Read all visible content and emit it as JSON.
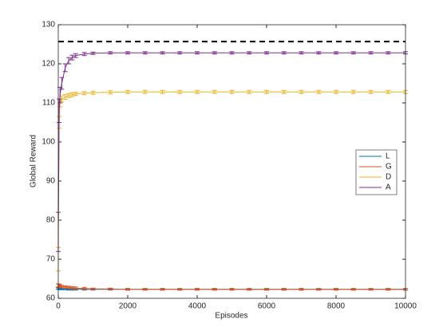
{
  "chart_data": {
    "type": "line",
    "x_label": "Episodes",
    "y_label": "Global Reward",
    "x": [
      0,
      25,
      50,
      100,
      200,
      300,
      400,
      500,
      750,
      1000,
      1500,
      2000,
      2500,
      3000,
      3500,
      4000,
      4500,
      5000,
      5500,
      6000,
      6500,
      7000,
      7500,
      8000,
      8500,
      9000,
      9500,
      10000
    ],
    "series": [
      {
        "name": "L",
        "color": "#0072bd",
        "values": [
          62.5,
          62.5,
          62.4,
          62.4,
          62.4,
          62.3,
          62.3,
          62.3,
          62.3,
          62.3,
          62.3,
          62.3,
          62.3,
          62.3,
          62.3,
          62.3,
          62.3,
          62.3,
          62.3,
          62.3,
          62.3,
          62.3,
          62.3,
          62.3,
          62.3,
          62.3,
          62.3,
          62.3
        ],
        "errors": [
          0.2,
          0.2,
          0.2,
          0.2,
          0.2,
          0.2,
          0.2,
          0.2,
          0.2,
          0.2,
          0.2,
          0.2,
          0.2,
          0.2,
          0.2,
          0.2,
          0.2,
          0.2,
          0.2,
          0.2,
          0.2,
          0.2,
          0.2,
          0.2,
          0.2,
          0.2,
          0.2,
          0.2
        ]
      },
      {
        "name": "G",
        "color": "#d95319",
        "values": [
          63.3,
          63.2,
          63.1,
          63.0,
          62.9,
          62.8,
          62.7,
          62.6,
          62.5,
          62.4,
          62.4,
          62.3,
          62.3,
          62.3,
          62.3,
          62.3,
          62.3,
          62.3,
          62.3,
          62.3,
          62.3,
          62.3,
          62.3,
          62.3,
          62.3,
          62.3,
          62.3,
          62.3
        ],
        "errors": [
          0.4,
          0.4,
          0.3,
          0.3,
          0.3,
          0.3,
          0.3,
          0.3,
          0.3,
          0.2,
          0.2,
          0.2,
          0.2,
          0.2,
          0.2,
          0.2,
          0.2,
          0.2,
          0.2,
          0.2,
          0.2,
          0.2,
          0.2,
          0.2,
          0.2,
          0.2,
          0.2,
          0.2
        ]
      },
      {
        "name": "D",
        "color": "#edb120",
        "values": [
          70,
          105,
          110,
          111,
          111.5,
          111.9,
          112.1,
          112.3,
          112.5,
          112.6,
          112.7,
          112.8,
          112.8,
          112.8,
          112.8,
          112.8,
          112.8,
          112.8,
          112.8,
          112.8,
          112.8,
          112.8,
          112.8,
          112.8,
          112.8,
          112.8,
          112.8,
          112.8
        ],
        "errors": [
          3,
          1.5,
          1,
          0.8,
          0.6,
          0.5,
          0.5,
          0.4,
          0.4,
          0.4,
          0.4,
          0.4,
          0.4,
          0.4,
          0.4,
          0.4,
          0.4,
          0.4,
          0.4,
          0.4,
          0.4,
          0.4,
          0.4,
          0.4,
          0.4,
          0.4,
          0.4,
          0.4
        ]
      },
      {
        "name": "A",
        "color": "#7e2f8e",
        "values": [
          77,
          108,
          112,
          115,
          119,
          120.8,
          121.6,
          122.1,
          122.5,
          122.7,
          122.8,
          122.8,
          122.8,
          122.8,
          122.8,
          122.8,
          122.8,
          122.8,
          122.8,
          122.8,
          122.8,
          122.8,
          122.8,
          122.8,
          122.8,
          122.8,
          122.8,
          122.8
        ],
        "errors": [
          5,
          3,
          2,
          1.5,
          1,
          0.8,
          0.6,
          0.5,
          0.4,
          0.3,
          0.3,
          0.3,
          0.3,
          0.3,
          0.3,
          0.3,
          0.3,
          0.3,
          0.3,
          0.3,
          0.3,
          0.3,
          0.3,
          0.3,
          0.3,
          0.3,
          0.3,
          0.3
        ]
      }
    ],
    "reference_line": {
      "value": 125.7,
      "color": "#000000",
      "style": "dashed"
    },
    "xlim": [
      0,
      10000
    ],
    "xticks": [
      0,
      2000,
      4000,
      6000,
      8000,
      10000
    ],
    "ylim": [
      60,
      130
    ],
    "yticks": [
      60,
      70,
      80,
      90,
      100,
      110,
      120,
      130
    ],
    "legend": "right"
  }
}
